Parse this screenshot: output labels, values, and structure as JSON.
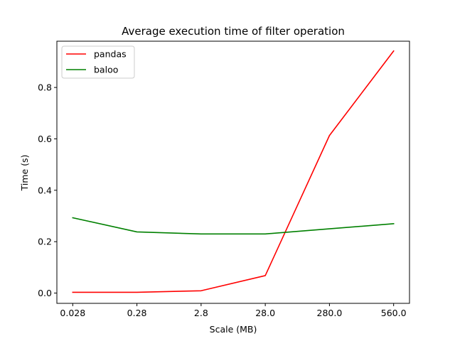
{
  "chart_data": {
    "type": "line",
    "title": "Average execution time of filter operation",
    "xlabel": "Scale (MB)",
    "ylabel": "Time (s)",
    "categories": [
      "0.028",
      "0.28",
      "2.8",
      "28.0",
      "280.0",
      "560.0"
    ],
    "ylim": [
      -0.04,
      0.98
    ],
    "yticks": [
      "0.0",
      "0.2",
      "0.4",
      "0.6",
      "0.8"
    ],
    "grid": false,
    "legend_position": "top-left",
    "series": [
      {
        "name": "pandas",
        "color": "#ff0000",
        "values": [
          0.003,
          0.003,
          0.009,
          0.068,
          0.613,
          0.942
        ]
      },
      {
        "name": "baloo",
        "color": "#008000",
        "values": [
          0.293,
          0.238,
          0.23,
          0.23,
          0.25,
          0.27
        ]
      }
    ]
  }
}
